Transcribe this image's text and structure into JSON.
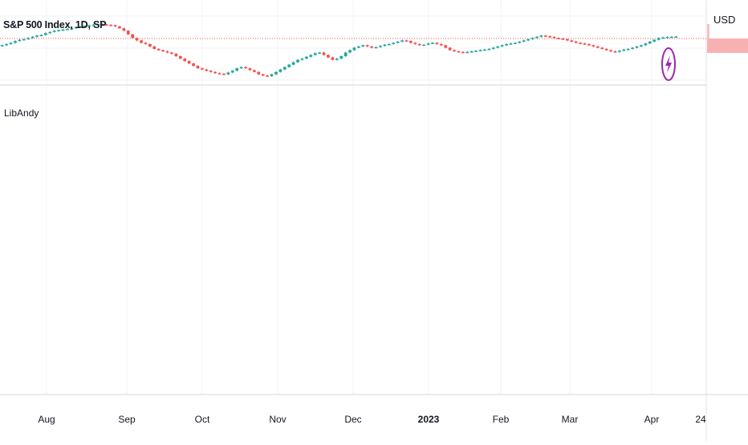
{
  "header": {
    "symbol_title": "S&P 500 Index, 1D, SP",
    "indicator_name": "LibAndy",
    "currency": "USD"
  },
  "time_axis": {
    "labels": [
      {
        "text": "Aug",
        "bold": false,
        "frac": 0.0
      },
      {
        "text": "Sep",
        "bold": false,
        "frac": 0.0
      },
      {
        "text": "Oct",
        "bold": false,
        "frac": 0.0
      },
      {
        "text": "Nov",
        "bold": false,
        "frac": 0.0
      },
      {
        "text": "Dec",
        "bold": false,
        "frac": 0.0
      },
      {
        "text": "2023",
        "bold": true,
        "frac": 0.0
      },
      {
        "text": "Feb",
        "bold": false,
        "frac": 0.0
      },
      {
        "text": "Mar",
        "bold": false,
        "frac": 0.0
      },
      {
        "text": "Apr",
        "bold": false,
        "frac": 0.0
      },
      {
        "text": "24",
        "bold": false,
        "frac": 0.0
      }
    ]
  },
  "colors": {
    "up": "#26a69a",
    "down": "#ef5350",
    "grid": "#f0f3fa",
    "axis_line": "#d1d4dc",
    "price_line": "#ef5350",
    "flash_icon": "#9c27b0"
  },
  "icons": {
    "flash": "lightning-bolt-icon"
  },
  "chart_data": {
    "type": "candlestick",
    "series_closes": [
      4040,
      4050,
      4060,
      4075,
      4085,
      4090,
      4100,
      4110,
      4120,
      4125,
      4140,
      4150,
      4160,
      4165,
      4170,
      4175,
      4180,
      4190,
      4195,
      4200,
      4205,
      4210,
      4215,
      4212,
      4208,
      4205,
      4195,
      4180,
      4160,
      4130,
      4100,
      4080,
      4060,
      4050,
      4030,
      4010,
      4000,
      3990,
      3980,
      3970,
      3950,
      3930,
      3910,
      3890,
      3870,
      3850,
      3840,
      3830,
      3820,
      3810,
      3805,
      3800,
      3815,
      3830,
      3850,
      3860,
      3850,
      3835,
      3820,
      3800,
      3790,
      3785,
      3800,
      3820,
      3840,
      3860,
      3880,
      3900,
      3920,
      3930,
      3945,
      3960,
      3975,
      3980,
      3960,
      3940,
      3920,
      3930,
      3950,
      3980,
      4000,
      4020,
      4030,
      4040,
      4030,
      4020,
      4025,
      4035,
      4045,
      4050,
      4060,
      4070,
      4080,
      4075,
      4060,
      4050,
      4040,
      4045,
      4055,
      4060,
      4050,
      4040,
      4020,
      4000,
      3990,
      3985,
      3980,
      3985,
      3990,
      3995,
      4000,
      4005,
      4010,
      4020,
      4030,
      4040,
      4050,
      4055,
      4060,
      4070,
      4080,
      4090,
      4100,
      4110,
      4120,
      4115,
      4108,
      4100,
      4095,
      4090,
      4080,
      4070,
      4060,
      4055,
      4050,
      4040,
      4030,
      4020,
      4010,
      4000,
      3990,
      3985,
      3995,
      4005,
      4010,
      4020,
      4030,
      4040,
      4055,
      4070,
      4085,
      4100,
      4105,
      4108,
      4110,
      4112
    ],
    "last_price_frac": 0.46,
    "grid": true
  }
}
